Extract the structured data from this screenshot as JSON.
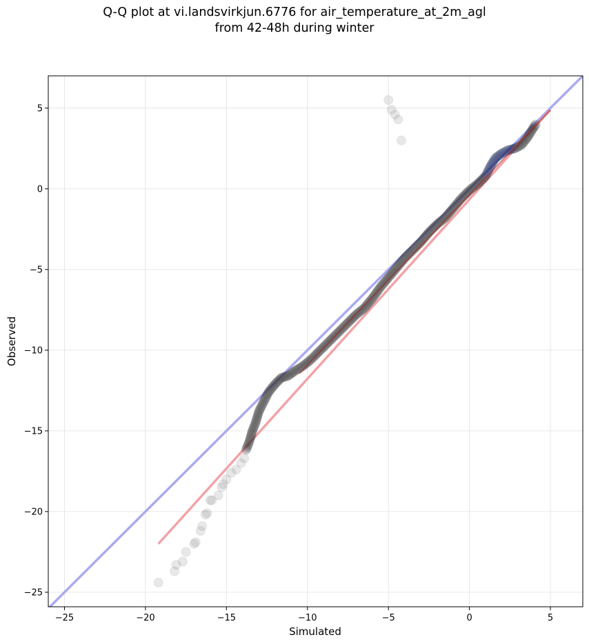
{
  "chart_data": {
    "type": "scatter",
    "title": "Q-Q plot at vi.landsvirkjun.6776 for air_temperature_at_2m_agl",
    "subtitle": "from 42-48h during winter",
    "xlabel": "Simulated",
    "ylabel": "Observed",
    "xlim": [
      -26,
      7
    ],
    "ylim": [
      -25.9,
      7
    ],
    "xticks": [
      -25,
      -20,
      -15,
      -10,
      -5,
      0,
      5
    ],
    "yticks": [
      -25,
      -20,
      -15,
      -10,
      -5,
      0,
      5
    ],
    "xtick_labels": [
      "−25",
      "−20",
      "−15",
      "−10",
      "−5",
      "0",
      "5"
    ],
    "ytick_labels": [
      "−25",
      "−20",
      "−15",
      "−10",
      "−5",
      "0",
      "5"
    ],
    "grid": true,
    "colors": {
      "points": "#333333",
      "identity_line": "#aaaaf0",
      "fit_line": "#f2a3a6",
      "fit_line_dark": "#a02020",
      "upper_points": "#1a2a6a"
    },
    "identity_line": {
      "x": [
        -26,
        7
      ],
      "y": [
        -26,
        7
      ]
    },
    "fit_line": {
      "x": [
        -19.2,
        5.0
      ],
      "y": [
        -22.0,
        4.9
      ]
    },
    "quantile_curve": {
      "x": [
        -13.8,
        -13.6,
        -13.4,
        -13.2,
        -13.0,
        -12.7,
        -12.4,
        -12.0,
        -11.6,
        -11.2,
        -10.8,
        -10.3,
        -9.8,
        -9.2,
        -8.6,
        -8.0,
        -7.4,
        -7.0,
        -6.5,
        -6.0,
        -5.5,
        -5.0,
        -4.5,
        -4.0,
        -3.5,
        -3.0,
        -2.5,
        -2.0,
        -1.5,
        -1.0,
        -0.5,
        0.0,
        0.5,
        1.0,
        1.3,
        1.6,
        2.0,
        2.4,
        2.8,
        3.2,
        3.6,
        3.9,
        4.1
      ],
      "y": [
        -16.2,
        -15.7,
        -15.0,
        -14.5,
        -13.8,
        -13.2,
        -12.6,
        -12.1,
        -11.7,
        -11.6,
        -11.3,
        -11.0,
        -10.6,
        -10.0,
        -9.4,
        -8.8,
        -8.2,
        -7.8,
        -7.4,
        -6.8,
        -6.1,
        -5.5,
        -4.9,
        -4.3,
        -3.8,
        -3.3,
        -2.7,
        -2.2,
        -1.8,
        -1.2,
        -0.6,
        -0.1,
        0.3,
        0.8,
        1.4,
        1.9,
        2.2,
        2.4,
        2.5,
        2.7,
        3.2,
        3.7,
        4.0
      ]
    },
    "tail_points": {
      "x": [
        -19.2,
        -18.2,
        -18.1,
        -17.7,
        -17.5,
        -17.0,
        -16.9,
        -16.6,
        -16.5,
        -16.3,
        -16.2,
        -16.0,
        -15.9,
        -15.5,
        -15.3,
        -15.2,
        -15.0,
        -14.7,
        -14.4,
        -14.1,
        -13.9,
        -4.2,
        -4.4,
        -4.6,
        -4.8,
        -5.0
      ],
      "y": [
        -24.4,
        -23.7,
        -23.3,
        -23.1,
        -22.5,
        -22.0,
        -21.9,
        -21.2,
        -20.9,
        -20.2,
        -20.1,
        -19.3,
        -19.3,
        -19.0,
        -18.5,
        -18.3,
        -18.0,
        -17.6,
        -17.4,
        -17.0,
        -16.7,
        3.0,
        4.3,
        4.6,
        4.9,
        5.5
      ]
    }
  }
}
